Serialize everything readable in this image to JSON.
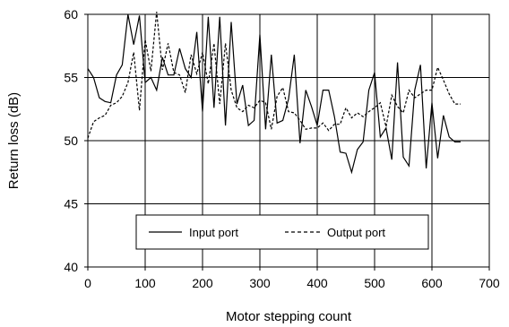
{
  "chart_data": {
    "type": "line",
    "xlabel": "Motor stepping count",
    "ylabel": "Return loss (dB)",
    "xlim": [
      0,
      700
    ],
    "ylim": [
      40,
      60
    ],
    "xticks": [
      0,
      100,
      200,
      300,
      400,
      500,
      600,
      700
    ],
    "yticks": [
      40,
      45,
      50,
      55,
      60
    ],
    "grid": true,
    "legend": "bottom-center",
    "series": [
      {
        "name": "Input port",
        "line_style": "solid",
        "color": "#000000",
        "x": [
          0,
          10,
          20,
          30,
          40,
          50,
          60,
          70,
          80,
          90,
          100,
          110,
          120,
          130,
          140,
          150,
          160,
          170,
          180,
          190,
          200,
          210,
          220,
          230,
          240,
          250,
          260,
          270,
          280,
          290,
          300,
          310,
          320,
          330,
          340,
          350,
          360,
          370,
          380,
          390,
          400,
          410,
          420,
          430,
          440,
          450,
          460,
          470,
          480,
          490,
          500,
          510,
          520,
          530,
          540,
          550,
          560,
          570,
          580,
          590,
          600,
          610,
          620,
          630,
          640,
          650
        ],
        "y": [
          55.7,
          55,
          53.4,
          53.1,
          53,
          55.2,
          56,
          60,
          57.6,
          59.9,
          54.6,
          55,
          54,
          56.6,
          55.2,
          55.2,
          57.3,
          55.7,
          55,
          58.6,
          52.3,
          59.8,
          52.6,
          59.8,
          51.2,
          59.4,
          52.9,
          54.4,
          51.2,
          51.6,
          58.4,
          50.9,
          56.8,
          51.4,
          51.6,
          53.3,
          56.8,
          49.8,
          54,
          52.7,
          51.2,
          54,
          54,
          51.9,
          49.1,
          49,
          47.5,
          49.3,
          49.9,
          54,
          55.4,
          50.3,
          51,
          48.5,
          56.2,
          48.7,
          48,
          54,
          56,
          47.8,
          53,
          48.6,
          52,
          50.3,
          49.9,
          49.9
        ]
      },
      {
        "name": "Output port",
        "line_style": "dashed",
        "color": "#000000",
        "x": [
          0,
          10,
          20,
          30,
          40,
          50,
          60,
          70,
          80,
          90,
          100,
          110,
          120,
          130,
          140,
          150,
          160,
          170,
          180,
          190,
          200,
          210,
          220,
          230,
          240,
          250,
          260,
          270,
          280,
          290,
          300,
          310,
          320,
          330,
          340,
          350,
          360,
          370,
          380,
          390,
          400,
          410,
          420,
          430,
          440,
          450,
          460,
          470,
          480,
          490,
          500,
          510,
          520,
          530,
          540,
          550,
          560,
          570,
          580,
          590,
          600,
          610,
          620,
          630,
          640,
          650
        ],
        "y": [
          50.2,
          51.5,
          51.8,
          52,
          52.8,
          53,
          53.5,
          54.6,
          57,
          52.4,
          58,
          55.5,
          60.2,
          55.6,
          57.7,
          55.4,
          55.2,
          53.8,
          56.8,
          55.3,
          57,
          54.5,
          57.7,
          52.9,
          57.7,
          54,
          52.6,
          52.3,
          52.8,
          52.6,
          53.2,
          53,
          50.9,
          53.5,
          54.2,
          52.3,
          52.2,
          51.6,
          50.9,
          51,
          51,
          51.4,
          50.8,
          51.3,
          51.3,
          52.6,
          51.8,
          52.2,
          51.9,
          52.3,
          52.6,
          53,
          51.1,
          53.6,
          52.7,
          52.2,
          54,
          53.4,
          53.7,
          54,
          54,
          55.8,
          54.8,
          53.7,
          52.9,
          52.9
        ]
      }
    ]
  }
}
